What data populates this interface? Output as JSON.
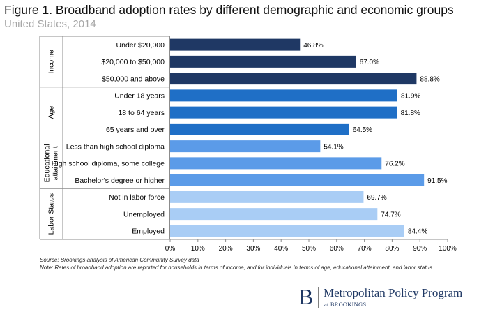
{
  "title": "Figure 1. Broadband adoption rates by different demographic and economic groups",
  "subtitle": "United States, 2014",
  "chart_data": {
    "type": "bar",
    "orientation": "horizontal",
    "xlim": [
      0,
      100
    ],
    "x_ticks": [
      "0%",
      "10%",
      "20%",
      "30%",
      "40%",
      "50%",
      "60%",
      "70%",
      "80%",
      "90%",
      "100%"
    ],
    "grid": false,
    "groups": [
      {
        "name": "Income",
        "color": "#1f3864",
        "categories": [
          "Under $20,000",
          "$20,000 to $50,000",
          "$50,000 and above"
        ],
        "values": [
          46.8,
          67.0,
          88.8
        ],
        "labels": [
          "46.8%",
          "67.0%",
          "88.8%"
        ]
      },
      {
        "name": "Age",
        "color": "#1f6fc6",
        "categories": [
          "Under 18 years",
          "18 to 64 years",
          "65 years and over"
        ],
        "values": [
          81.9,
          81.8,
          64.5
        ],
        "labels": [
          "81.9%",
          "81.8%",
          "64.5%"
        ]
      },
      {
        "name": "Educational attainment",
        "name_lines": [
          "Educational",
          "attainment"
        ],
        "color": "#5b9be8",
        "categories": [
          "Less than high school diploma",
          "High school diploma, some college",
          "Bachelor's degree or higher"
        ],
        "values": [
          54.1,
          76.2,
          91.5
        ],
        "labels": [
          "54.1%",
          "76.2%",
          "91.5%"
        ]
      },
      {
        "name": "Labor Status",
        "color": "#a9cdf5",
        "categories": [
          "Not in labor force",
          "Unemployed",
          "Employed"
        ],
        "values": [
          69.7,
          74.7,
          84.4
        ],
        "labels": [
          "69.7%",
          "74.7%",
          "84.4%"
        ]
      }
    ]
  },
  "notes": {
    "source": "Source: Brookings analysis of American Community Survey data",
    "note": "Note: Rates of broadband adoption are reported for households in terms of income, and for individuals in terms of age, educational attainment, and labor status"
  },
  "logo": {
    "mark": "B",
    "name": "Metropolitan Policy Program",
    "sub": "at BROOKINGS"
  }
}
